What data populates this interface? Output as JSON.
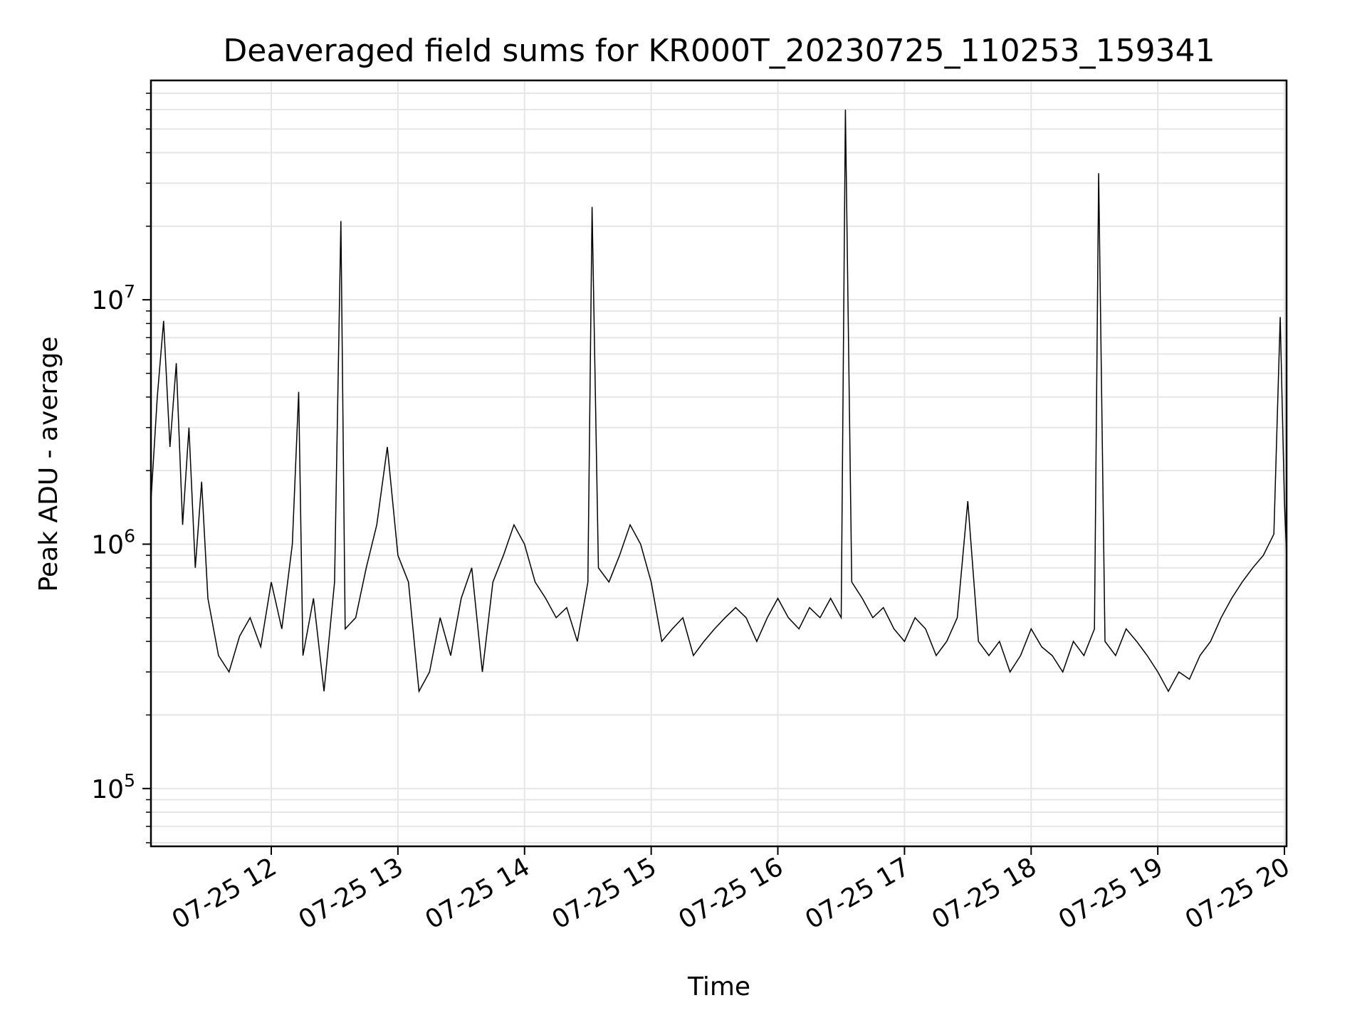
{
  "chart_data": {
    "type": "line",
    "title": "Deaveraged field sums for KR000T_20230725_110253_159341",
    "xlabel": "Time",
    "ylabel": "Peak ADU - average",
    "yscale": "log",
    "ylim": [
      58000,
      79000000
    ],
    "xlim": [
      "2023-07-25 11:03",
      "2023-07-25 20:01"
    ],
    "grid": true,
    "line_color": "#000000",
    "x_ticks": [
      "07-25 12",
      "07-25 13",
      "07-25 14",
      "07-25 15",
      "07-25 16",
      "07-25 17",
      "07-25 18",
      "07-25 19",
      "07-25 20"
    ],
    "y_ticks": [
      {
        "base": "10",
        "exp": "5",
        "value": 100000
      },
      {
        "base": "10",
        "exp": "6",
        "value": 1000000
      },
      {
        "base": "10",
        "exp": "7",
        "value": 10000000
      }
    ],
    "series": [
      {
        "x": [
          "2023-07-25 11:03",
          "2023-07-25 11:06",
          "2023-07-25 11:09",
          "2023-07-25 11:12",
          "2023-07-25 11:15",
          "2023-07-25 11:18",
          "2023-07-25 11:21",
          "2023-07-25 11:24",
          "2023-07-25 11:27",
          "2023-07-25 11:30",
          "2023-07-25 11:35",
          "2023-07-25 11:40",
          "2023-07-25 11:45",
          "2023-07-25 11:50",
          "2023-07-25 11:55",
          "2023-07-25 12:00",
          "2023-07-25 12:05",
          "2023-07-25 12:10",
          "2023-07-25 12:13",
          "2023-07-25 12:15",
          "2023-07-25 12:20",
          "2023-07-25 12:25",
          "2023-07-25 12:30",
          "2023-07-25 12:33",
          "2023-07-25 12:35",
          "2023-07-25 12:40",
          "2023-07-25 12:45",
          "2023-07-25 12:50",
          "2023-07-25 12:55",
          "2023-07-25 13:00",
          "2023-07-25 13:05",
          "2023-07-25 13:10",
          "2023-07-25 13:15",
          "2023-07-25 13:20",
          "2023-07-25 13:25",
          "2023-07-25 13:30",
          "2023-07-25 13:35",
          "2023-07-25 13:40",
          "2023-07-25 13:45",
          "2023-07-25 13:50",
          "2023-07-25 13:55",
          "2023-07-25 14:00",
          "2023-07-25 14:05",
          "2023-07-25 14:10",
          "2023-07-25 14:15",
          "2023-07-25 14:20",
          "2023-07-25 14:25",
          "2023-07-25 14:30",
          "2023-07-25 14:32",
          "2023-07-25 14:35",
          "2023-07-25 14:40",
          "2023-07-25 14:45",
          "2023-07-25 14:50",
          "2023-07-25 14:55",
          "2023-07-25 15:00",
          "2023-07-25 15:05",
          "2023-07-25 15:10",
          "2023-07-25 15:15",
          "2023-07-25 15:20",
          "2023-07-25 15:25",
          "2023-07-25 15:30",
          "2023-07-25 15:35",
          "2023-07-25 15:40",
          "2023-07-25 15:45",
          "2023-07-25 15:50",
          "2023-07-25 15:55",
          "2023-07-25 16:00",
          "2023-07-25 16:05",
          "2023-07-25 16:10",
          "2023-07-25 16:15",
          "2023-07-25 16:20",
          "2023-07-25 16:25",
          "2023-07-25 16:30",
          "2023-07-25 16:32",
          "2023-07-25 16:35",
          "2023-07-25 16:40",
          "2023-07-25 16:45",
          "2023-07-25 16:50",
          "2023-07-25 16:55",
          "2023-07-25 17:00",
          "2023-07-25 17:05",
          "2023-07-25 17:10",
          "2023-07-25 17:15",
          "2023-07-25 17:20",
          "2023-07-25 17:25",
          "2023-07-25 17:30",
          "2023-07-25 17:35",
          "2023-07-25 17:40",
          "2023-07-25 17:45",
          "2023-07-25 17:50",
          "2023-07-25 17:55",
          "2023-07-25 18:00",
          "2023-07-25 18:05",
          "2023-07-25 18:10",
          "2023-07-25 18:15",
          "2023-07-25 18:20",
          "2023-07-25 18:25",
          "2023-07-25 18:30",
          "2023-07-25 18:32",
          "2023-07-25 18:35",
          "2023-07-25 18:40",
          "2023-07-25 18:45",
          "2023-07-25 18:50",
          "2023-07-25 18:55",
          "2023-07-25 19:00",
          "2023-07-25 19:05",
          "2023-07-25 19:10",
          "2023-07-25 19:15",
          "2023-07-25 19:20",
          "2023-07-25 19:25",
          "2023-07-25 19:30",
          "2023-07-25 19:35",
          "2023-07-25 19:40",
          "2023-07-25 19:45",
          "2023-07-25 19:50",
          "2023-07-25 19:55",
          "2023-07-25 19:58",
          "2023-07-25 20:00",
          "2023-07-25 20:01"
        ],
        "y": [
          1500000,
          4000000,
          8200000,
          2500000,
          5500000,
          1200000,
          3000000,
          800000,
          1800000,
          600000,
          350000,
          300000,
          420000,
          500000,
          380000,
          700000,
          450000,
          1000000,
          4200000,
          350000,
          600000,
          250000,
          700000,
          21000000,
          450000,
          500000,
          800000,
          1200000,
          2500000,
          900000,
          700000,
          250000,
          300000,
          500000,
          350000,
          600000,
          800000,
          300000,
          700000,
          900000,
          1200000,
          1000000,
          700000,
          600000,
          500000,
          550000,
          400000,
          700000,
          24000000,
          800000,
          700000,
          900000,
          1200000,
          1000000,
          700000,
          400000,
          450000,
          500000,
          350000,
          400000,
          450000,
          500000,
          550000,
          500000,
          400000,
          500000,
          600000,
          500000,
          450000,
          550000,
          500000,
          600000,
          500000,
          60000000,
          700000,
          600000,
          500000,
          550000,
          450000,
          400000,
          500000,
          450000,
          350000,
          400000,
          500000,
          1500000,
          400000,
          350000,
          400000,
          300000,
          350000,
          450000,
          380000,
          350000,
          300000,
          400000,
          350000,
          450000,
          33000000,
          400000,
          350000,
          450000,
          400000,
          350000,
          300000,
          250000,
          300000,
          280000,
          350000,
          400000,
          500000,
          600000,
          700000,
          800000,
          900000,
          1100000,
          8500000,
          1500000,
          900000
        ]
      }
    ]
  }
}
